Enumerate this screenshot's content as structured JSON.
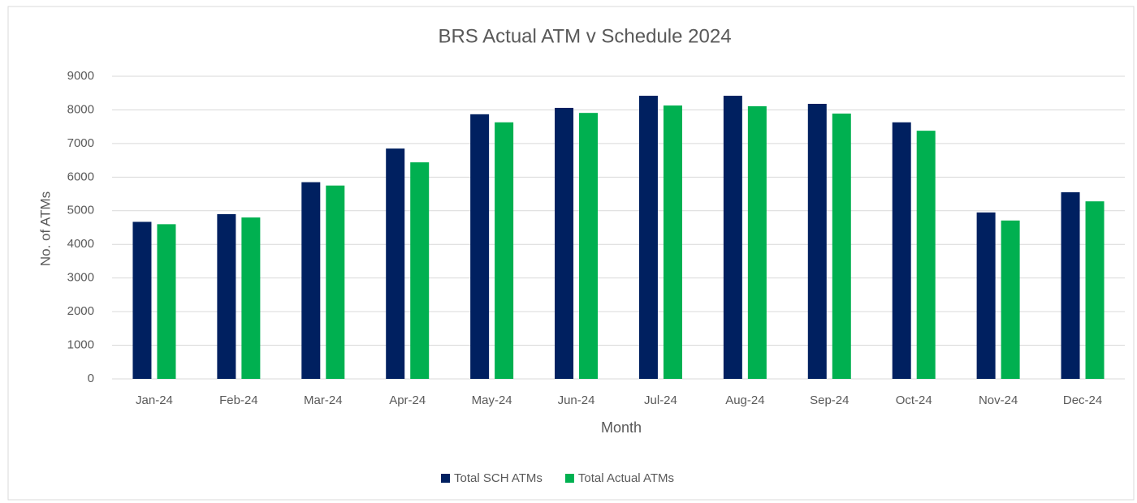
{
  "chart_data": {
    "type": "bar",
    "title": "BRS Actual ATM v Schedule 2024",
    "x_label": "Month",
    "y_label": "No. of ATMs",
    "categories": [
      "Jan-24",
      "Feb-24",
      "Mar-24",
      "Apr-24",
      "May-24",
      "Jun-24",
      "Jul-24",
      "Aug-24",
      "Sep-24",
      "Oct-24",
      "Nov-24",
      "Dec-24"
    ],
    "series": [
      {
        "name": "Total SCH ATMs",
        "color": "#002060",
        "values": [
          4670,
          4900,
          5850,
          6850,
          7870,
          8060,
          8420,
          8420,
          8180,
          7630,
          4950,
          5550
        ]
      },
      {
        "name": "Total Actual ATMs",
        "color": "#00b050",
        "values": [
          4600,
          4800,
          5750,
          6440,
          7630,
          7910,
          8130,
          8110,
          7890,
          7380,
          4710,
          5280
        ]
      }
    ],
    "ylim": [
      0,
      9000
    ],
    "yticks": [
      0,
      1000,
      2000,
      3000,
      4000,
      5000,
      6000,
      7000,
      8000,
      9000
    ],
    "grid": true,
    "legend": "bottom"
  }
}
